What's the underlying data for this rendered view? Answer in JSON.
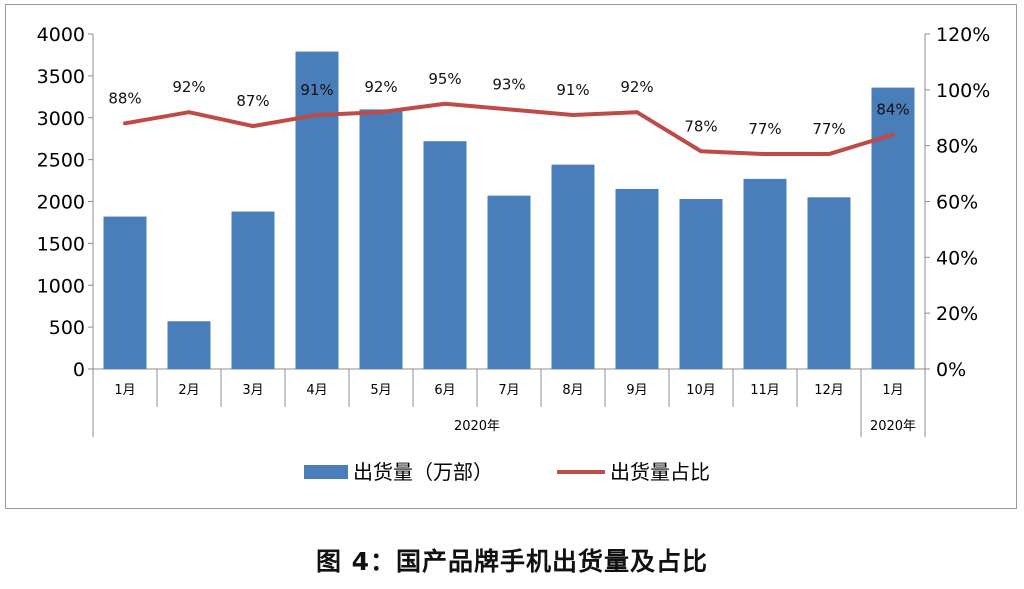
{
  "caption": "图 4：国产品牌手机出货量及占比",
  "chart_data": {
    "type": "bar",
    "categories": [
      "1月",
      "2月",
      "3月",
      "4月",
      "5月",
      "6月",
      "7月",
      "8月",
      "9月",
      "10月",
      "11月",
      "12月",
      "1月"
    ],
    "groups": [
      {
        "label": "2020年",
        "from": 0,
        "to": 11
      },
      {
        "label": "2020年",
        "from": 12,
        "to": 12
      }
    ],
    "series": [
      {
        "name": "出货量（万部）",
        "type": "bar",
        "axis": "left",
        "color": "#4a7ebb",
        "values": [
          1820,
          570,
          1880,
          3790,
          3100,
          2720,
          2070,
          2440,
          2150,
          2030,
          2270,
          2050,
          3360
        ]
      },
      {
        "name": "出货量占比",
        "type": "line",
        "axis": "right",
        "color": "#be4b48",
        "values": [
          88,
          92,
          87,
          91,
          92,
          95,
          93,
          91,
          92,
          78,
          77,
          77,
          84
        ],
        "labels": [
          "88%",
          "92%",
          "87%",
          "91%",
          "92%",
          "95%",
          "93%",
          "91%",
          "92%",
          "78%",
          "77%",
          "77%",
          "84%"
        ]
      }
    ],
    "y_left": {
      "min": 0,
      "max": 4000,
      "step": 500,
      "ticks": [
        "0",
        "500",
        "1000",
        "1500",
        "2000",
        "2500",
        "3000",
        "3500",
        "4000"
      ]
    },
    "y_right": {
      "min": 0,
      "max": 120,
      "step": 20,
      "ticks": [
        "0%",
        "20%",
        "40%",
        "60%",
        "80%",
        "100%",
        "120%"
      ]
    },
    "grid": false,
    "legend_position": "bottom"
  }
}
